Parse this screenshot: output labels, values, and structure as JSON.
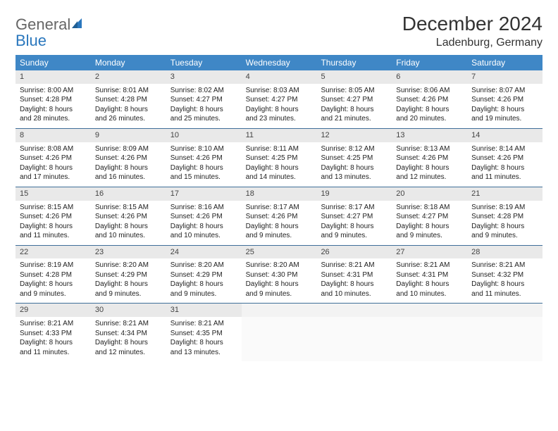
{
  "logo": {
    "general": "General",
    "blue": "Blue"
  },
  "title": "December 2024",
  "location": "Ladenburg, Germany",
  "colors": {
    "header_bg": "#3f87c6",
    "header_text": "#ffffff",
    "daynum_bg": "#e9e9e9",
    "week_border": "#3f6f99",
    "logo_gray": "#666666",
    "logo_blue": "#2a77bd"
  },
  "day_names": [
    "Sunday",
    "Monday",
    "Tuesday",
    "Wednesday",
    "Thursday",
    "Friday",
    "Saturday"
  ],
  "weeks": [
    [
      {
        "n": "1",
        "sr": "Sunrise: 8:00 AM",
        "ss": "Sunset: 4:28 PM",
        "d1": "Daylight: 8 hours",
        "d2": "and 28 minutes."
      },
      {
        "n": "2",
        "sr": "Sunrise: 8:01 AM",
        "ss": "Sunset: 4:28 PM",
        "d1": "Daylight: 8 hours",
        "d2": "and 26 minutes."
      },
      {
        "n": "3",
        "sr": "Sunrise: 8:02 AM",
        "ss": "Sunset: 4:27 PM",
        "d1": "Daylight: 8 hours",
        "d2": "and 25 minutes."
      },
      {
        "n": "4",
        "sr": "Sunrise: 8:03 AM",
        "ss": "Sunset: 4:27 PM",
        "d1": "Daylight: 8 hours",
        "d2": "and 23 minutes."
      },
      {
        "n": "5",
        "sr": "Sunrise: 8:05 AM",
        "ss": "Sunset: 4:27 PM",
        "d1": "Daylight: 8 hours",
        "d2": "and 21 minutes."
      },
      {
        "n": "6",
        "sr": "Sunrise: 8:06 AM",
        "ss": "Sunset: 4:26 PM",
        "d1": "Daylight: 8 hours",
        "d2": "and 20 minutes."
      },
      {
        "n": "7",
        "sr": "Sunrise: 8:07 AM",
        "ss": "Sunset: 4:26 PM",
        "d1": "Daylight: 8 hours",
        "d2": "and 19 minutes."
      }
    ],
    [
      {
        "n": "8",
        "sr": "Sunrise: 8:08 AM",
        "ss": "Sunset: 4:26 PM",
        "d1": "Daylight: 8 hours",
        "d2": "and 17 minutes."
      },
      {
        "n": "9",
        "sr": "Sunrise: 8:09 AM",
        "ss": "Sunset: 4:26 PM",
        "d1": "Daylight: 8 hours",
        "d2": "and 16 minutes."
      },
      {
        "n": "10",
        "sr": "Sunrise: 8:10 AM",
        "ss": "Sunset: 4:26 PM",
        "d1": "Daylight: 8 hours",
        "d2": "and 15 minutes."
      },
      {
        "n": "11",
        "sr": "Sunrise: 8:11 AM",
        "ss": "Sunset: 4:25 PM",
        "d1": "Daylight: 8 hours",
        "d2": "and 14 minutes."
      },
      {
        "n": "12",
        "sr": "Sunrise: 8:12 AM",
        "ss": "Sunset: 4:25 PM",
        "d1": "Daylight: 8 hours",
        "d2": "and 13 minutes."
      },
      {
        "n": "13",
        "sr": "Sunrise: 8:13 AM",
        "ss": "Sunset: 4:26 PM",
        "d1": "Daylight: 8 hours",
        "d2": "and 12 minutes."
      },
      {
        "n": "14",
        "sr": "Sunrise: 8:14 AM",
        "ss": "Sunset: 4:26 PM",
        "d1": "Daylight: 8 hours",
        "d2": "and 11 minutes."
      }
    ],
    [
      {
        "n": "15",
        "sr": "Sunrise: 8:15 AM",
        "ss": "Sunset: 4:26 PM",
        "d1": "Daylight: 8 hours",
        "d2": "and 11 minutes."
      },
      {
        "n": "16",
        "sr": "Sunrise: 8:15 AM",
        "ss": "Sunset: 4:26 PM",
        "d1": "Daylight: 8 hours",
        "d2": "and 10 minutes."
      },
      {
        "n": "17",
        "sr": "Sunrise: 8:16 AM",
        "ss": "Sunset: 4:26 PM",
        "d1": "Daylight: 8 hours",
        "d2": "and 10 minutes."
      },
      {
        "n": "18",
        "sr": "Sunrise: 8:17 AM",
        "ss": "Sunset: 4:26 PM",
        "d1": "Daylight: 8 hours",
        "d2": "and 9 minutes."
      },
      {
        "n": "19",
        "sr": "Sunrise: 8:17 AM",
        "ss": "Sunset: 4:27 PM",
        "d1": "Daylight: 8 hours",
        "d2": "and 9 minutes."
      },
      {
        "n": "20",
        "sr": "Sunrise: 8:18 AM",
        "ss": "Sunset: 4:27 PM",
        "d1": "Daylight: 8 hours",
        "d2": "and 9 minutes."
      },
      {
        "n": "21",
        "sr": "Sunrise: 8:19 AM",
        "ss": "Sunset: 4:28 PM",
        "d1": "Daylight: 8 hours",
        "d2": "and 9 minutes."
      }
    ],
    [
      {
        "n": "22",
        "sr": "Sunrise: 8:19 AM",
        "ss": "Sunset: 4:28 PM",
        "d1": "Daylight: 8 hours",
        "d2": "and 9 minutes."
      },
      {
        "n": "23",
        "sr": "Sunrise: 8:20 AM",
        "ss": "Sunset: 4:29 PM",
        "d1": "Daylight: 8 hours",
        "d2": "and 9 minutes."
      },
      {
        "n": "24",
        "sr": "Sunrise: 8:20 AM",
        "ss": "Sunset: 4:29 PM",
        "d1": "Daylight: 8 hours",
        "d2": "and 9 minutes."
      },
      {
        "n": "25",
        "sr": "Sunrise: 8:20 AM",
        "ss": "Sunset: 4:30 PM",
        "d1": "Daylight: 8 hours",
        "d2": "and 9 minutes."
      },
      {
        "n": "26",
        "sr": "Sunrise: 8:21 AM",
        "ss": "Sunset: 4:31 PM",
        "d1": "Daylight: 8 hours",
        "d2": "and 10 minutes."
      },
      {
        "n": "27",
        "sr": "Sunrise: 8:21 AM",
        "ss": "Sunset: 4:31 PM",
        "d1": "Daylight: 8 hours",
        "d2": "and 10 minutes."
      },
      {
        "n": "28",
        "sr": "Sunrise: 8:21 AM",
        "ss": "Sunset: 4:32 PM",
        "d1": "Daylight: 8 hours",
        "d2": "and 11 minutes."
      }
    ],
    [
      {
        "n": "29",
        "sr": "Sunrise: 8:21 AM",
        "ss": "Sunset: 4:33 PM",
        "d1": "Daylight: 8 hours",
        "d2": "and 11 minutes."
      },
      {
        "n": "30",
        "sr": "Sunrise: 8:21 AM",
        "ss": "Sunset: 4:34 PM",
        "d1": "Daylight: 8 hours",
        "d2": "and 12 minutes."
      },
      {
        "n": "31",
        "sr": "Sunrise: 8:21 AM",
        "ss": "Sunset: 4:35 PM",
        "d1": "Daylight: 8 hours",
        "d2": "and 13 minutes."
      },
      {
        "empty": true
      },
      {
        "empty": true
      },
      {
        "empty": true
      },
      {
        "empty": true
      }
    ]
  ]
}
